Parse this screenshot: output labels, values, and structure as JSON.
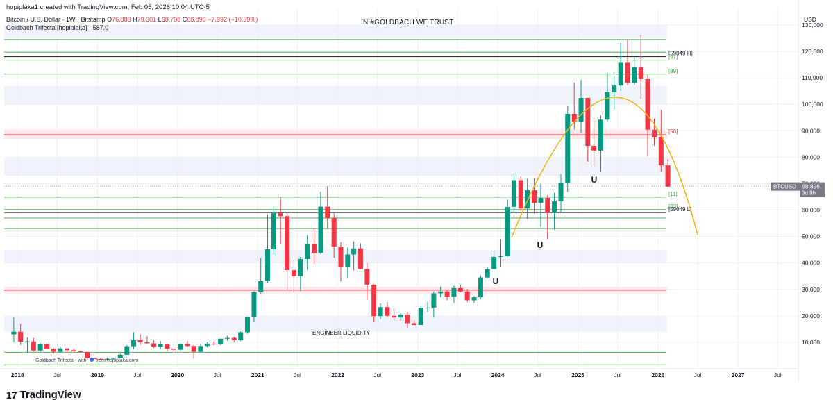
{
  "header": {
    "credit": "hopiplaka1 created with TradingView.com, Feb 05, 2026 10:04 UTC-5",
    "symbol": "Bitcoin / U.S. Dollar · 1W · Bitstamp",
    "ohlc": {
      "o_label": "O",
      "o": "76,888",
      "h_label": "H",
      "h": "79,301",
      "l_label": "L",
      "l": "68,708",
      "c_label": "C",
      "c": "68,896",
      "change": "−7,992 (−10.39%)"
    },
    "indicator": "Goldbach Trifecta [hopiplaka] · 587.0",
    "center_text": "IN #GOLDBACH WE TRUST"
  },
  "axis": {
    "currency": "USD",
    "price_ticks": [
      "10,000",
      "20,000",
      "30,000",
      "40,000",
      "50,000",
      "60,000",
      "70,000",
      "80,000",
      "90,000",
      "100,000",
      "110,000",
      "120,000",
      "130,000"
    ],
    "time_ticks": [
      "2018",
      "Jul",
      "2019",
      "Jul",
      "2020",
      "Jul",
      "2021",
      "Jul",
      "2022",
      "Jul",
      "2023",
      "Jul",
      "2024",
      "Jul",
      "2025",
      "Jul",
      "2026",
      "Jul",
      "2027",
      "Jul"
    ]
  },
  "price_tag": {
    "symbol": "BTCUSD",
    "price": "68,896",
    "countdown": "3d 9h"
  },
  "levels": {
    "h_label": "[59049 H]",
    "l97": "[97]",
    "l89": "[89]",
    "l50": "[50]",
    "l11": "[11]",
    "l03": "[03]",
    "l_label": "[59049 L]"
  },
  "annotations": {
    "engineer": "ENGINEER LIQUIDITY",
    "watermark": "Goldbach Trifecta - with",
    "watermark2": "from hopiplaka.com",
    "magnets": "U"
  },
  "footer": {
    "logo": "TradingView",
    "logo_mark": "17"
  },
  "colors": {
    "up": "#089981",
    "down": "#f23645",
    "arc": "#f5b31c",
    "green_line": "#4caf50",
    "red_line": "#f23645",
    "black_line": "#131722",
    "band": "#f0f3fa"
  },
  "chart_data": {
    "type": "candlestick",
    "title": "",
    "ylim": [
      0,
      135000
    ],
    "time_range": [
      "2017-11",
      "2027-12"
    ],
    "series": [
      {
        "name": "BTCUSD",
        "points": [
          [
            "2017-12",
            13000,
            19500,
            10000,
            14000
          ],
          [
            "2018-01",
            14000,
            17000,
            9000,
            10200
          ],
          [
            "2018-02",
            10200,
            11800,
            6000,
            10300
          ],
          [
            "2018-03",
            10300,
            11600,
            6500,
            6900
          ],
          [
            "2018-04",
            6900,
            9700,
            6400,
            9200
          ],
          [
            "2018-05",
            9200,
            9900,
            7200,
            7500
          ],
          [
            "2018-06",
            7500,
            7700,
            5800,
            6400
          ],
          [
            "2018-07",
            6400,
            8500,
            6100,
            7700
          ],
          [
            "2018-08",
            7700,
            7700,
            5900,
            7000
          ],
          [
            "2018-09",
            7000,
            7400,
            6100,
            6600
          ],
          [
            "2018-10",
            6600,
            6900,
            6200,
            6300
          ],
          [
            "2018-11",
            6300,
            6500,
            3600,
            4000
          ],
          [
            "2018-12",
            4000,
            4300,
            3100,
            3700
          ],
          [
            "2019-01",
            3700,
            4100,
            3400,
            3450
          ],
          [
            "2019-02",
            3450,
            4200,
            3400,
            3800
          ],
          [
            "2019-03",
            3800,
            4100,
            3700,
            4100
          ],
          [
            "2019-04",
            4100,
            5600,
            4100,
            5300
          ],
          [
            "2019-05",
            5300,
            9000,
            5300,
            8500
          ],
          [
            "2019-06",
            8500,
            13800,
            7500,
            10800
          ],
          [
            "2019-07",
            10800,
            13000,
            9000,
            10000
          ],
          [
            "2019-08",
            10000,
            12300,
            9400,
            9600
          ],
          [
            "2019-09",
            9600,
            10900,
            7800,
            8300
          ],
          [
            "2019-10",
            8300,
            10500,
            7300,
            9200
          ],
          [
            "2019-11",
            9200,
            9500,
            6500,
            7600
          ],
          [
            "2019-12",
            7600,
            7700,
            6400,
            7200
          ],
          [
            "2020-01",
            7200,
            9600,
            6900,
            9350
          ],
          [
            "2020-02",
            9350,
            10500,
            8400,
            8600
          ],
          [
            "2020-03",
            8600,
            9100,
            3850,
            6400
          ],
          [
            "2020-04",
            6400,
            9400,
            6200,
            8600
          ],
          [
            "2020-05",
            8600,
            10000,
            8100,
            9450
          ],
          [
            "2020-06",
            9450,
            10400,
            8900,
            9150
          ],
          [
            "2020-07",
            9150,
            11400,
            8950,
            11350
          ],
          [
            "2020-08",
            11350,
            12450,
            10600,
            11650
          ],
          [
            "2020-09",
            11650,
            12100,
            9900,
            10800
          ],
          [
            "2020-10",
            10800,
            14100,
            10400,
            13800
          ],
          [
            "2020-11",
            13800,
            19800,
            13200,
            19700
          ],
          [
            "2020-12",
            19700,
            29300,
            17600,
            29000
          ],
          [
            "2021-01",
            29000,
            41900,
            28100,
            33100
          ],
          [
            "2021-02",
            33100,
            58300,
            32400,
            45200
          ],
          [
            "2021-03",
            45200,
            61700,
            43000,
            58800
          ],
          [
            "2021-04",
            58800,
            64800,
            47000,
            57700
          ],
          [
            "2021-05",
            57700,
            59500,
            30000,
            37300
          ],
          [
            "2021-06",
            37300,
            41300,
            28800,
            35000
          ],
          [
            "2021-07",
            35000,
            42300,
            29300,
            41500
          ],
          [
            "2021-08",
            41500,
            50500,
            37300,
            47100
          ],
          [
            "2021-09",
            47100,
            52900,
            39600,
            43800
          ],
          [
            "2021-10",
            43800,
            67000,
            43300,
            61300
          ],
          [
            "2021-11",
            61300,
            69000,
            53000,
            57000
          ],
          [
            "2021-12",
            57000,
            59100,
            42000,
            46200
          ],
          [
            "2022-01",
            46200,
            47900,
            33000,
            38500
          ],
          [
            "2022-02",
            38500,
            45800,
            34300,
            43200
          ],
          [
            "2022-03",
            43200,
            48200,
            37200,
            45500
          ],
          [
            "2022-04",
            45500,
            47400,
            37600,
            37700
          ],
          [
            "2022-05",
            37700,
            40000,
            26000,
            31800
          ],
          [
            "2022-06",
            31800,
            32000,
            17600,
            19900
          ],
          [
            "2022-07",
            19900,
            24700,
            18800,
            23300
          ],
          [
            "2022-08",
            23300,
            25200,
            19600,
            20000
          ],
          [
            "2022-09",
            20000,
            22700,
            18200,
            19400
          ],
          [
            "2022-10",
            19400,
            21000,
            18200,
            20500
          ],
          [
            "2022-11",
            20500,
            21500,
            15500,
            17200
          ],
          [
            "2022-12",
            17200,
            18400,
            16300,
            16550
          ],
          [
            "2023-01",
            16550,
            23900,
            16500,
            23100
          ],
          [
            "2023-02",
            23100,
            25200,
            21400,
            23150
          ],
          [
            "2023-03",
            23150,
            29200,
            19600,
            28500
          ],
          [
            "2023-04",
            28500,
            31000,
            27000,
            29200
          ],
          [
            "2023-05",
            29200,
            29800,
            25800,
            27200
          ],
          [
            "2023-06",
            27200,
            31400,
            24800,
            30500
          ],
          [
            "2023-07",
            30500,
            31800,
            28900,
            29200
          ],
          [
            "2023-08",
            29200,
            30200,
            25200,
            25900
          ],
          [
            "2023-09",
            25900,
            27500,
            24900,
            27000
          ],
          [
            "2023-10",
            27000,
            35200,
            26600,
            34500
          ],
          [
            "2023-11",
            34500,
            38400,
            34100,
            37700
          ],
          [
            "2023-12",
            37700,
            44700,
            37600,
            42300
          ],
          [
            "2024-01",
            42300,
            48900,
            38600,
            42600
          ],
          [
            "2024-02",
            42600,
            64000,
            42300,
            61200
          ],
          [
            "2024-03",
            61200,
            73800,
            59300,
            71300
          ],
          [
            "2024-04",
            71300,
            72700,
            59600,
            60600
          ],
          [
            "2024-05",
            60600,
            71900,
            56600,
            67500
          ],
          [
            "2024-06",
            67500,
            72000,
            58600,
            62700
          ],
          [
            "2024-07",
            62700,
            70000,
            53600,
            64600
          ],
          [
            "2024-08",
            64600,
            65600,
            49000,
            58900
          ],
          [
            "2024-09",
            58900,
            66400,
            52600,
            63300
          ],
          [
            "2024-10",
            63300,
            73600,
            58900,
            70200
          ],
          [
            "2024-11",
            70200,
            99600,
            66800,
            96400
          ],
          [
            "2024-12",
            96400,
            108300,
            90500,
            93400
          ],
          [
            "2025-01",
            93400,
            109300,
            89200,
            102400
          ],
          [
            "2025-02",
            102400,
            102500,
            78200,
            84300
          ],
          [
            "2025-03",
            84300,
            95000,
            76600,
            82500
          ],
          [
            "2025-04",
            82500,
            95700,
            74500,
            94200
          ],
          [
            "2025-05",
            94200,
            111900,
            93400,
            104600
          ],
          [
            "2025-06",
            104600,
            110600,
            98200,
            107100
          ],
          [
            "2025-07",
            107100,
            123200,
            105100,
            115700
          ],
          [
            "2025-08",
            115700,
            124400,
            107300,
            108200
          ],
          [
            "2025-09",
            108200,
            117900,
            107300,
            114000
          ],
          [
            "2025-10",
            114000,
            126200,
            102000,
            109500
          ],
          [
            "2025-11",
            109500,
            111200,
            80500,
            90400
          ],
          [
            "2025-12",
            90400,
            94600,
            84400,
            87500
          ],
          [
            "2026-01",
            87500,
            97900,
            74500,
            76900
          ],
          [
            "2026-02",
            76900,
            79300,
            68700,
            68896
          ]
        ]
      }
    ],
    "horizontal_levels": [
      {
        "label": "[59049 H]",
        "value": 118000,
        "color": "#131722"
      },
      {
        "label": "[97]",
        "value": 116700,
        "color": "#4caf50"
      },
      {
        "label": "[89]",
        "value": 111400,
        "color": "#4caf50"
      },
      {
        "label": "[50]",
        "value": 88500,
        "color": "#f23645"
      },
      {
        "label": "[11]",
        "value": 64900,
        "color": "#4caf50"
      },
      {
        "label": "[03]",
        "value": 60200,
        "color": "#4caf50"
      },
      {
        "label": "[59049 L]",
        "value": 59049,
        "color": "#131722"
      }
    ],
    "last_price": 68896,
    "legend": "none",
    "grid": true
  }
}
